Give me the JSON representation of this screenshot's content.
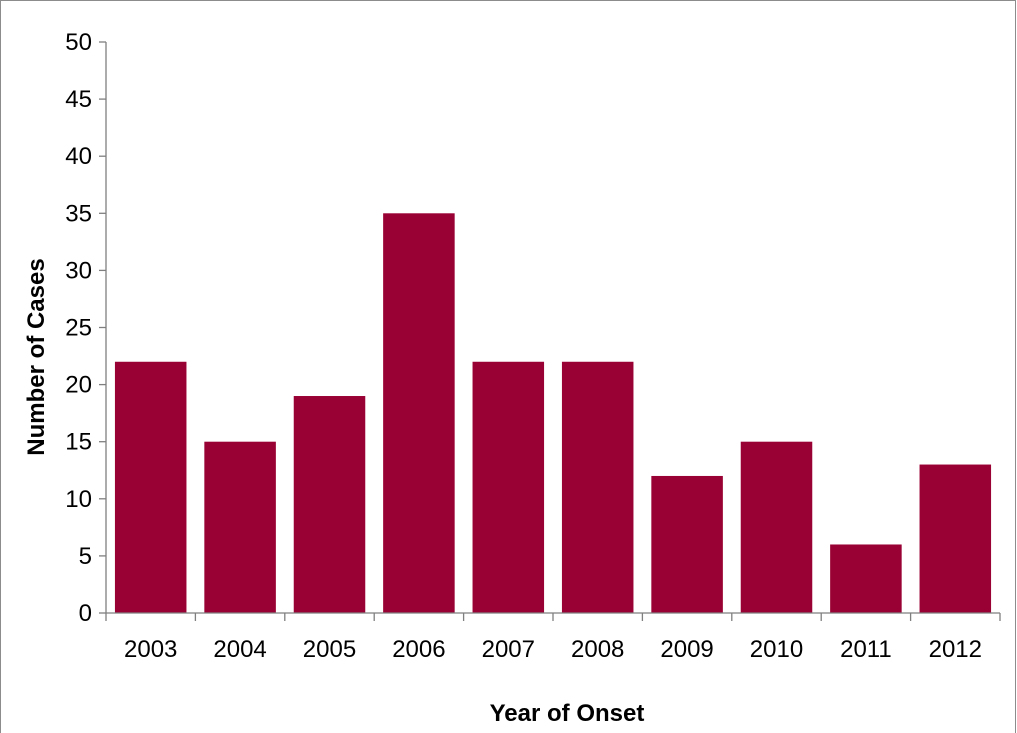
{
  "chart_data": {
    "type": "bar",
    "title": "",
    "xlabel": "Year of Onset",
    "ylabel": "Number of Cases",
    "categories": [
      "2003",
      "2004",
      "2005",
      "2006",
      "2007",
      "2008",
      "2009",
      "2010",
      "2011",
      "2012"
    ],
    "values": [
      22,
      15,
      19,
      35,
      22,
      22,
      12,
      15,
      6,
      13
    ],
    "ylim": [
      0,
      50
    ],
    "yticks": [
      "0",
      "5",
      "10",
      "15",
      "20",
      "25",
      "30",
      "35",
      "40",
      "45",
      "50"
    ],
    "grid": false,
    "legend": "none",
    "bar_color": "#990033"
  }
}
